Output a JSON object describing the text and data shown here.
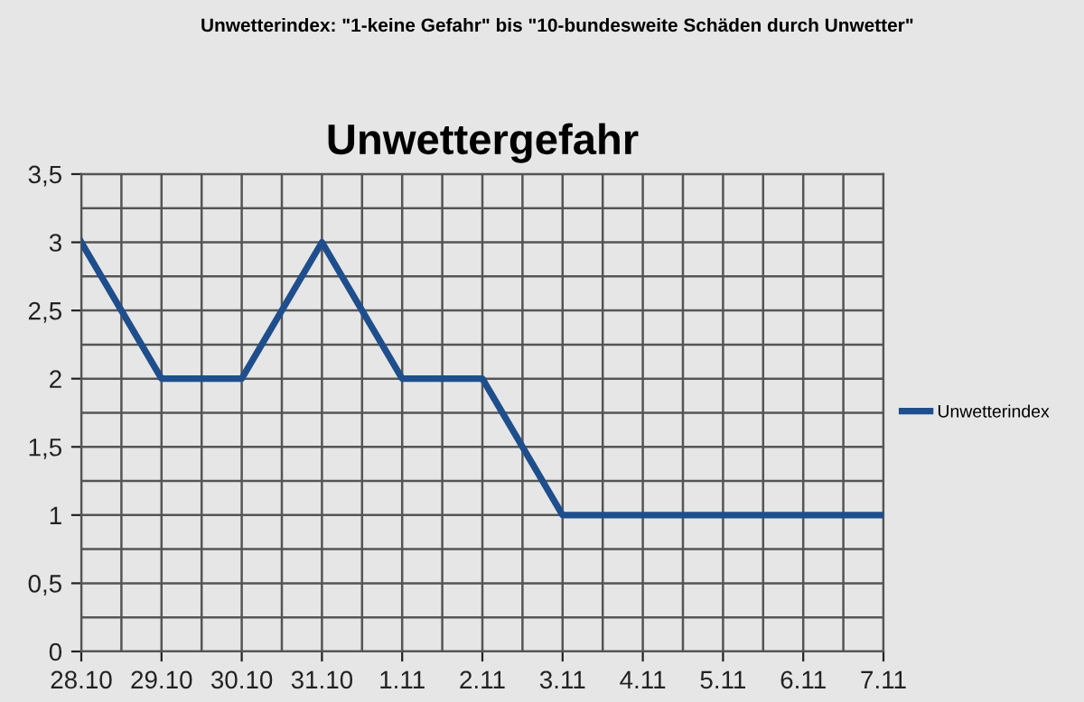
{
  "chart_data": {
    "type": "line",
    "title": "Unwettergefahr",
    "subtitle": "Unwetterindex: \"1-keine Gefahr\" bis \"10-bundesweite Schäden durch Unwetter\"",
    "categories": [
      "28.10",
      "29.10",
      "30.10",
      "31.10",
      "1.11",
      "2.11",
      "3.11",
      "4.11",
      "5.11",
      "6.11",
      "7.11"
    ],
    "series": [
      {
        "name": "Unwetterindex",
        "color": "#1f4e8c",
        "values": [
          3,
          2,
          2,
          3,
          2,
          2,
          1,
          1,
          1,
          1,
          1
        ]
      }
    ],
    "ylim": [
      0,
      3.5
    ],
    "yticks": [
      0,
      {
        "value": 0.5,
        "label": "0,5"
      },
      1,
      {
        "value": 1.5,
        "label": "1,5"
      },
      2,
      {
        "value": 2.5,
        "label": "2,5"
      },
      3,
      {
        "value": 3.5,
        "label": "3,5"
      }
    ],
    "grid": true,
    "legend": "right",
    "marker": "none",
    "line_style": "solid"
  }
}
